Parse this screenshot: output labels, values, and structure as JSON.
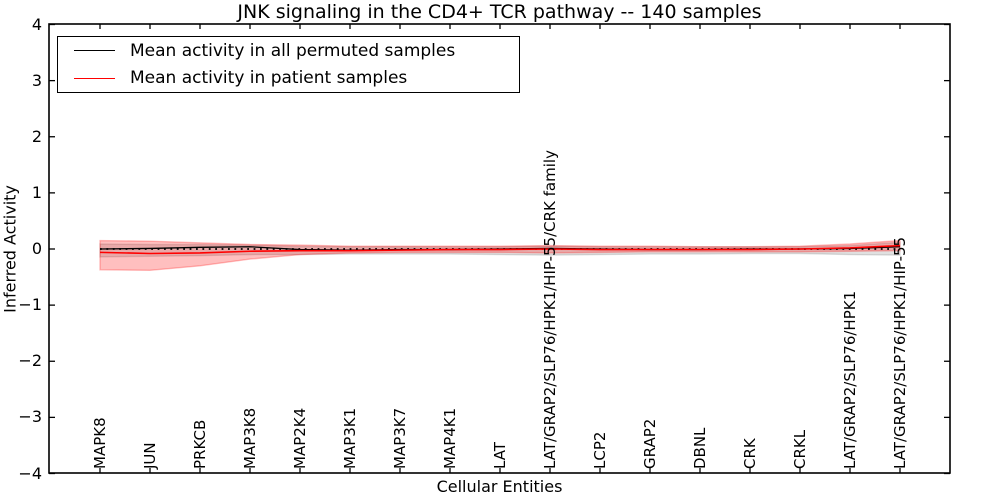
{
  "title": "JNK signaling in the CD4+ TCR pathway -- 140 samples",
  "axes": {
    "xlabel": "Cellular Entities",
    "ylabel": "Inferred Activity",
    "yticks": [
      "4",
      "3",
      "2",
      "1",
      "0",
      "−1",
      "−2",
      "−3",
      "−4"
    ],
    "ylim": [
      -4,
      4
    ],
    "grid": false
  },
  "legend": {
    "position": "upper-left",
    "items": [
      {
        "label": "Mean activity in all permuted samples",
        "color": "#000000"
      },
      {
        "label": "Mean activity in patient samples",
        "color": "#ff0000"
      }
    ]
  },
  "chart_data": {
    "type": "line",
    "title": "JNK signaling in the CD4+ TCR pathway -- 140 samples",
    "xlabel": "Cellular Entities",
    "ylabel": "Inferred Activity",
    "ylim": [
      -4,
      4
    ],
    "zero_reference_line": 0,
    "categories": [
      "MAPK8",
      "JUN",
      "PRKCB",
      "MAP3K8",
      "MAP2K4",
      "MAP3K1",
      "MAP3K7",
      "MAP4K1",
      "LAT",
      "LAT/GRAP2/SLP76/HPK1/HIP-55/CRK family",
      "LCP2",
      "GRAP2",
      "DBNL",
      "CRK",
      "CRKL",
      "LAT/GRAP2/SLP76/HPK1",
      "LAT/GRAP2/SLP76/HPK1/HIP-55"
    ],
    "series": [
      {
        "name": "Mean activity in all permuted samples",
        "color": "#000000",
        "line_width": 1.3,
        "values": [
          0.0,
          0.01,
          0.03,
          0.04,
          -0.01,
          -0.02,
          -0.01,
          -0.01,
          0.0,
          0.01,
          0.0,
          -0.01,
          -0.01,
          0.0,
          0.0,
          0.01,
          0.04
        ],
        "band_upper": [
          0.09,
          0.08,
          0.08,
          0.07,
          0.05,
          0.04,
          0.04,
          0.04,
          0.04,
          0.05,
          0.04,
          0.04,
          0.04,
          0.04,
          0.04,
          0.06,
          0.12
        ],
        "band_lower": [
          -0.14,
          -0.13,
          -0.12,
          -0.1,
          -0.1,
          -0.09,
          -0.09,
          -0.09,
          -0.1,
          -0.11,
          -0.1,
          -0.09,
          -0.09,
          -0.08,
          -0.08,
          -0.1,
          -0.11
        ],
        "band_fill": "rgba(0,0,0,0.12)"
      },
      {
        "name": "Mean activity in patient samples",
        "color": "#ff0000",
        "line_width": 1.6,
        "values": [
          -0.06,
          -0.08,
          -0.07,
          -0.04,
          -0.03,
          -0.03,
          -0.02,
          -0.01,
          -0.01,
          0.0,
          -0.01,
          -0.01,
          -0.01,
          -0.01,
          0.0,
          0.02,
          0.06
        ],
        "band_upper": [
          0.15,
          0.14,
          0.11,
          0.08,
          0.07,
          0.05,
          0.05,
          0.05,
          0.05,
          0.06,
          0.05,
          0.05,
          0.04,
          0.04,
          0.05,
          0.09,
          0.15
        ],
        "band_lower": [
          -0.37,
          -0.38,
          -0.3,
          -0.18,
          -0.1,
          -0.07,
          -0.06,
          -0.06,
          -0.06,
          -0.07,
          -0.06,
          -0.05,
          -0.05,
          -0.05,
          -0.05,
          -0.04,
          -0.03
        ],
        "band_fill": "rgba(255,0,0,0.25)"
      }
    ]
  }
}
